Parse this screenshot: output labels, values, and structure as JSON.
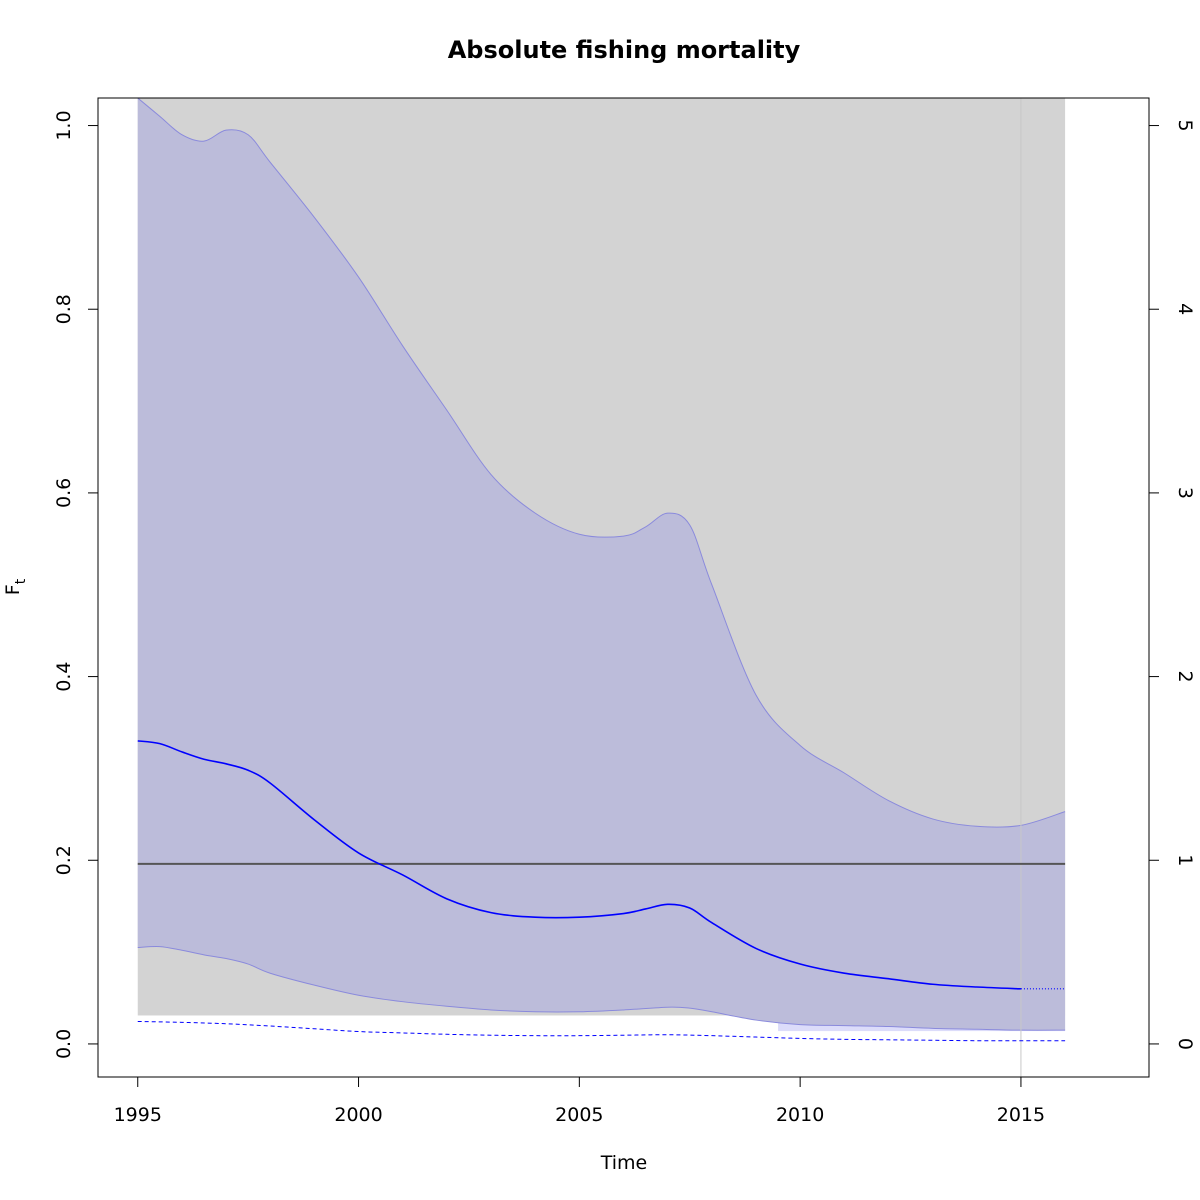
{
  "chart_data": {
    "type": "area",
    "title": "Absolute fishing mortality",
    "xlabel": "Time",
    "ylabel_main": "F",
    "ylabel_sub": "t",
    "xlim": [
      1994.1,
      2017.9
    ],
    "ylim": [
      -0.036,
      1.03
    ],
    "y2lim": [
      -0.18,
      5.15
    ],
    "x_ticks": [
      1995,
      2000,
      2005,
      2010,
      2015
    ],
    "x_tick_labels": [
      "1995",
      "2000",
      "2005",
      "2010",
      "2015"
    ],
    "y_ticks": [
      0.0,
      0.2,
      0.4,
      0.6,
      0.8,
      1.0
    ],
    "y_tick_labels": [
      "0.0",
      "0.2",
      "0.4",
      "0.6",
      "0.8",
      "1.0"
    ],
    "y2_ticks": [
      0,
      1,
      2,
      3,
      4,
      5
    ],
    "y2_tick_labels": [
      "0",
      "1",
      "2",
      "3",
      "4",
      "5"
    ],
    "grey_region": {
      "x": [
        1995,
        2016
      ],
      "y": [
        0.031,
        1.03
      ],
      "color": "#d3d3d3"
    },
    "fmsy_ci_lower_region": {
      "x": [
        2009.5,
        2016
      ],
      "y": [
        0.014,
        0.031
      ],
      "color": "#dcdcfa"
    },
    "vline_x": 2015,
    "colors": {
      "band_fill": "#bcbcda",
      "band_edge": "#8a8adc",
      "estimate": "#0000ff",
      "fmsy": "#555555",
      "grey": "#d3d3d3",
      "vline": "#c8c8c8",
      "ci_light": "#dcdcfa"
    },
    "series": [
      {
        "role": "ci_upper",
        "x": [
          1995,
          1995.5,
          1996,
          1996.5,
          1997,
          1997.5,
          1998,
          1999,
          2000,
          2001,
          2002,
          2003,
          2004,
          2005,
          2006,
          2006.5,
          2007,
          2007.5,
          2008,
          2009,
          2010,
          2011,
          2012,
          2013,
          2014,
          2015,
          2016
        ],
        "y": [
          1.03,
          1.01,
          0.99,
          0.983,
          0.995,
          0.99,
          0.96,
          0.9,
          0.835,
          0.76,
          0.69,
          0.62,
          0.578,
          0.555,
          0.553,
          0.563,
          0.578,
          0.565,
          0.5,
          0.38,
          0.325,
          0.295,
          0.265,
          0.245,
          0.237,
          0.238,
          0.253
        ]
      },
      {
        "role": "estimate",
        "x": [
          1995,
          1995.5,
          1996,
          1996.5,
          1997,
          1997.5,
          1998,
          1999,
          2000,
          2001,
          2002,
          2003,
          2004,
          2005,
          2006,
          2006.5,
          2007,
          2007.5,
          2008,
          2009,
          2010,
          2011,
          2012,
          2013,
          2014,
          2015
        ],
        "y": [
          0.33,
          0.327,
          0.318,
          0.31,
          0.305,
          0.298,
          0.284,
          0.244,
          0.208,
          0.184,
          0.158,
          0.143,
          0.138,
          0.138,
          0.142,
          0.147,
          0.152,
          0.148,
          0.132,
          0.104,
          0.087,
          0.077,
          0.071,
          0.065,
          0.062,
          0.06
        ]
      },
      {
        "role": "estimate_forecast",
        "x": [
          2015,
          2016
        ],
        "y": [
          0.06,
          0.06
        ]
      },
      {
        "role": "ci_lower",
        "x": [
          1995,
          1995.5,
          1996,
          1996.5,
          1997,
          1997.5,
          1998,
          1999,
          2000,
          2001,
          2002,
          2003,
          2004,
          2005,
          2006,
          2007,
          2007.5,
          2008,
          2009,
          2010,
          2011,
          2012,
          2013,
          2014,
          2015,
          2016
        ],
        "y": [
          0.105,
          0.106,
          0.102,
          0.097,
          0.093,
          0.087,
          0.077,
          0.064,
          0.053,
          0.046,
          0.041,
          0.037,
          0.035,
          0.035,
          0.037,
          0.04,
          0.039,
          0.035,
          0.026,
          0.021,
          0.02,
          0.019,
          0.017,
          0.016,
          0.015,
          0.015
        ]
      },
      {
        "role": "fmsy",
        "x": [
          1995,
          2016
        ],
        "y": [
          0.196,
          0.196
        ]
      },
      {
        "role": "fmsy_ci_lower_dashed",
        "x": [
          1995,
          1996,
          1997,
          1998,
          1999,
          2000,
          2001,
          2002,
          2003,
          2004,
          2005,
          2006,
          2007,
          2008,
          2009,
          2010,
          2011,
          2012,
          2013,
          2014,
          2015,
          2016
        ],
        "y": [
          0.0245,
          0.0235,
          0.022,
          0.0195,
          0.0165,
          0.0135,
          0.012,
          0.0105,
          0.0095,
          0.009,
          0.009,
          0.0095,
          0.01,
          0.009,
          0.0075,
          0.006,
          0.005,
          0.0045,
          0.004,
          0.0035,
          0.0035,
          0.0035
        ]
      }
    ]
  }
}
